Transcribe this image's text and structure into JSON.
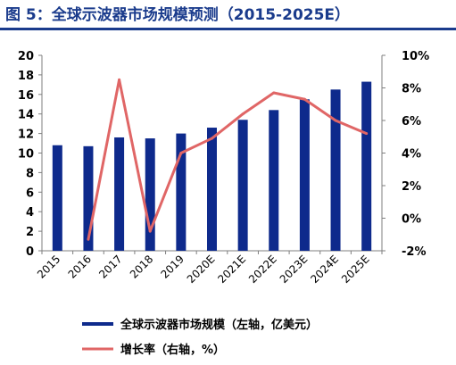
{
  "figure": {
    "title": "图 5：全球示波器市场规模预测（2015-2025E）"
  },
  "colors": {
    "title": "#1a3b8c",
    "bar": "#0e2a8c",
    "line": "#e06666",
    "axis": "#7f7f7f"
  },
  "chart_data": {
    "type": "bar",
    "categories": [
      "2015",
      "2016",
      "2017",
      "2018",
      "2019",
      "2020E",
      "2021E",
      "2022E",
      "2023E",
      "2024E",
      "2025E"
    ],
    "series": [
      {
        "name": "全球示波器市场规模（左轴，亿美元）",
        "type": "bar",
        "axis": "left",
        "values": [
          10.8,
          10.7,
          11.6,
          11.5,
          12.0,
          12.6,
          13.4,
          14.4,
          15.5,
          16.5,
          17.3
        ]
      },
      {
        "name": "增长率（右轴，%）",
        "type": "line",
        "axis": "right",
        "values": [
          null,
          -1.3,
          8.5,
          -0.8,
          4.0,
          4.9,
          6.4,
          7.7,
          7.3,
          6.0,
          5.2
        ]
      }
    ],
    "y_left": {
      "range": [
        0,
        20
      ],
      "ticks": [
        "0",
        "2",
        "4",
        "6",
        "8",
        "10",
        "12",
        "14",
        "16",
        "18",
        "20"
      ]
    },
    "y_right": {
      "range": [
        -2,
        10
      ],
      "ticks": [
        "-2%",
        "0%",
        "2%",
        "4%",
        "6%",
        "8%",
        "10%"
      ]
    },
    "grid": false,
    "legend_position": "bottom"
  }
}
